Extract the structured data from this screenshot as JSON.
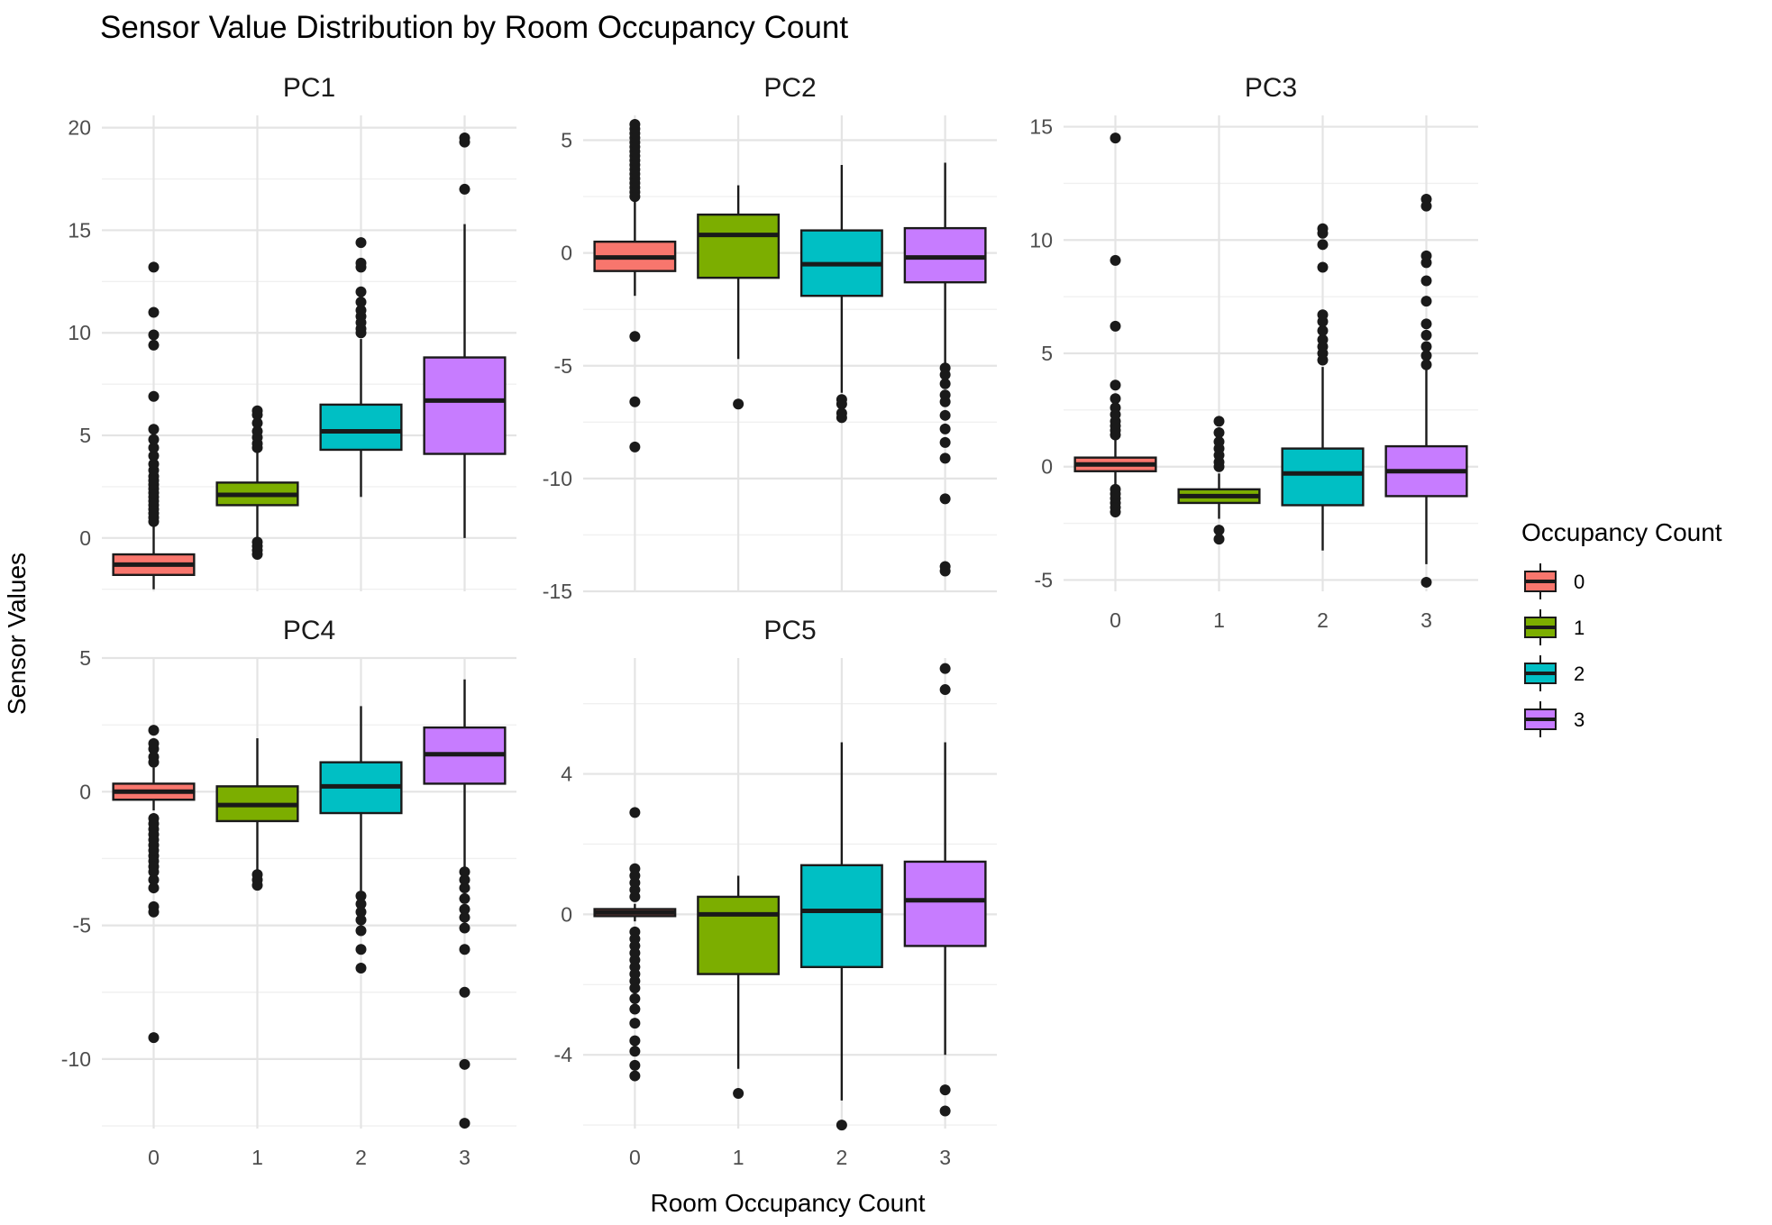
{
  "chart_data": {
    "type": "boxplot",
    "title": "Sensor Value Distribution by Room Occupancy Count",
    "xlabel": "Room Occupancy Count",
    "ylabel": "Sensor Values",
    "categories": [
      "0",
      "1",
      "2",
      "3"
    ],
    "grid": true,
    "legend": {
      "title": "Occupancy Count",
      "position": "right",
      "entries": [
        "0",
        "1",
        "2",
        "3"
      ]
    },
    "colors": {
      "0": "#F8766D",
      "1": "#7CAE00",
      "2": "#00BFC4",
      "3": "#C77CFF"
    },
    "panels": [
      {
        "name": "PC1",
        "ylim": [
          -2.6,
          20.6
        ],
        "yticks": [
          0,
          5,
          10,
          15,
          20
        ],
        "boxes": [
          {
            "category": "0",
            "lower_whisker": -2.5,
            "q1": -1.8,
            "median": -1.3,
            "q3": -0.8,
            "upper_whisker": 0.6,
            "outliers": [
              0.8,
              1.0,
              1.2,
              1.4,
              1.6,
              1.8,
              2.0,
              2.2,
              2.4,
              2.6,
              2.8,
              3.0,
              3.3,
              3.6,
              4.0,
              4.4,
              4.8,
              5.3,
              6.9,
              9.4,
              9.9,
              11.0,
              13.2
            ]
          },
          {
            "category": "1",
            "lower_whisker": 0.0,
            "q1": 1.6,
            "median": 2.1,
            "q3": 2.7,
            "upper_whisker": 4.2,
            "outliers": [
              -0.8,
              -0.6,
              -0.4,
              -0.2,
              4.4,
              4.6,
              4.9,
              5.2,
              5.6,
              6.0,
              6.2
            ]
          },
          {
            "category": "2",
            "lower_whisker": 2.0,
            "q1": 4.3,
            "median": 5.2,
            "q3": 6.5,
            "upper_whisker": 9.7,
            "outliers": [
              10.0,
              10.2,
              10.5,
              10.8,
              11.1,
              11.5,
              12.0,
              13.2,
              13.4,
              14.4
            ]
          },
          {
            "category": "3",
            "lower_whisker": 0.0,
            "q1": 4.1,
            "median": 6.7,
            "q3": 8.8,
            "upper_whisker": 15.3,
            "outliers": [
              17.0,
              19.3,
              19.5
            ]
          }
        ]
      },
      {
        "name": "PC2",
        "ylim": [
          -15.0,
          6.1
        ],
        "yticks": [
          -15,
          -10,
          -5,
          0,
          5
        ],
        "boxes": [
          {
            "category": "0",
            "lower_whisker": -1.9,
            "q1": -0.8,
            "median": -0.2,
            "q3": 0.5,
            "upper_whisker": 2.3,
            "outliers": [
              2.5,
              2.7,
              2.9,
              3.1,
              3.3,
              3.5,
              3.7,
              3.9,
              4.1,
              4.3,
              4.5,
              4.7,
              4.9,
              5.1,
              5.3,
              5.5,
              5.7,
              -3.7,
              -6.6,
              -8.6
            ]
          },
          {
            "category": "1",
            "lower_whisker": -4.7,
            "q1": -1.1,
            "median": 0.8,
            "q3": 1.7,
            "upper_whisker": 3.0,
            "outliers": [
              -6.7
            ]
          },
          {
            "category": "2",
            "lower_whisker": -6.2,
            "q1": -1.9,
            "median": -0.5,
            "q3": 1.0,
            "upper_whisker": 3.9,
            "outliers": [
              -6.5,
              -6.7,
              -7.1,
              -7.3
            ]
          },
          {
            "category": "3",
            "lower_whisker": -4.9,
            "q1": -1.3,
            "median": -0.2,
            "q3": 1.1,
            "upper_whisker": 4.0,
            "outliers": [
              -5.1,
              -5.4,
              -5.8,
              -6.3,
              -6.6,
              -7.2,
              -7.8,
              -8.4,
              -9.1,
              -10.9,
              -13.9,
              -14.1
            ]
          }
        ]
      },
      {
        "name": "PC3",
        "ylim": [
          -5.5,
          15.5
        ],
        "yticks": [
          -5,
          0,
          5,
          10,
          15
        ],
        "boxes": [
          {
            "category": "0",
            "lower_whisker": -0.8,
            "q1": -0.2,
            "median": 0.1,
            "q3": 0.4,
            "upper_whisker": 1.2,
            "outliers": [
              1.4,
              1.6,
              1.8,
              2.0,
              2.3,
              2.6,
              3.0,
              3.6,
              6.2,
              9.1,
              14.5,
              -1.0,
              -1.2,
              -1.4,
              -1.6,
              -1.8,
              -2.0
            ]
          },
          {
            "category": "1",
            "lower_whisker": -2.3,
            "q1": -1.6,
            "median": -1.3,
            "q3": -1.0,
            "upper_whisker": -0.3,
            "outliers": [
              -2.8,
              -3.2,
              0.0,
              0.2,
              0.5,
              0.8,
              1.1,
              1.5,
              2.0
            ]
          },
          {
            "category": "2",
            "lower_whisker": -3.7,
            "q1": -1.7,
            "median": -0.3,
            "q3": 0.8,
            "upper_whisker": 4.4,
            "outliers": [
              4.7,
              5.0,
              5.3,
              5.6,
              6.0,
              6.4,
              6.7,
              8.8,
              9.8,
              10.3,
              10.5
            ]
          },
          {
            "category": "3",
            "lower_whisker": -4.3,
            "q1": -1.3,
            "median": -0.2,
            "q3": 0.9,
            "upper_whisker": 4.3,
            "outliers": [
              -5.1,
              4.5,
              4.9,
              5.3,
              5.8,
              6.3,
              7.3,
              8.2,
              9.0,
              9.3,
              11.5,
              11.8
            ]
          }
        ]
      },
      {
        "name": "PC4",
        "ylim": [
          -12.6,
          5.0
        ],
        "yticks": [
          -10,
          -5,
          0,
          5
        ],
        "boxes": [
          {
            "category": "0",
            "lower_whisker": -0.7,
            "q1": -0.3,
            "median": 0.0,
            "q3": 0.3,
            "upper_whisker": 0.9,
            "outliers": [
              1.1,
              1.3,
              1.6,
              1.8,
              2.3,
              -1.0,
              -1.2,
              -1.4,
              -1.6,
              -1.8,
              -2.0,
              -2.2,
              -2.4,
              -2.6,
              -2.8,
              -3.0,
              -3.3,
              -3.6,
              -4.3,
              -4.5,
              -9.2
            ]
          },
          {
            "category": "1",
            "lower_whisker": -3.0,
            "q1": -1.1,
            "median": -0.5,
            "q3": 0.2,
            "upper_whisker": 2.0,
            "outliers": [
              -3.1,
              -3.3,
              -3.5
            ]
          },
          {
            "category": "2",
            "lower_whisker": -3.7,
            "q1": -0.8,
            "median": 0.2,
            "q3": 1.1,
            "upper_whisker": 3.2,
            "outliers": [
              -3.9,
              -4.2,
              -4.5,
              -4.8,
              -5.2,
              -5.9,
              -6.6
            ]
          },
          {
            "category": "3",
            "lower_whisker": -2.9,
            "q1": 0.3,
            "median": 1.4,
            "q3": 2.4,
            "upper_whisker": 4.2,
            "outliers": [
              -3.0,
              -3.3,
              -3.6,
              -4.0,
              -4.4,
              -4.7,
              -5.1,
              -5.9,
              -7.5,
              -10.2,
              -12.4
            ]
          }
        ]
      },
      {
        "name": "PC5",
        "ylim": [
          -6.1,
          7.3
        ],
        "yticks": [
          -4,
          0,
          4
        ],
        "boxes": [
          {
            "category": "0",
            "lower_whisker": -0.2,
            "q1": -0.05,
            "median": 0.05,
            "q3": 0.15,
            "upper_whisker": 0.3,
            "outliers": [
              0.5,
              0.7,
              0.9,
              1.1,
              1.3,
              2.9,
              -0.5,
              -0.7,
              -0.9,
              -1.1,
              -1.3,
              -1.5,
              -1.7,
              -1.9,
              -2.1,
              -2.4,
              -2.7,
              -3.1,
              -3.6,
              -3.9,
              -4.3,
              -4.6
            ]
          },
          {
            "category": "1",
            "lower_whisker": -4.4,
            "q1": -1.7,
            "median": 0.0,
            "q3": 0.5,
            "upper_whisker": 1.1,
            "outliers": [
              -5.1
            ]
          },
          {
            "category": "2",
            "lower_whisker": -5.3,
            "q1": -1.5,
            "median": 0.1,
            "q3": 1.4,
            "upper_whisker": 4.9,
            "outliers": [
              -6.0
            ]
          },
          {
            "category": "3",
            "lower_whisker": -4.0,
            "q1": -0.9,
            "median": 0.4,
            "q3": 1.5,
            "upper_whisker": 4.9,
            "outliers": [
              -5.0,
              -5.6,
              6.4,
              7.0
            ]
          }
        ]
      }
    ]
  }
}
